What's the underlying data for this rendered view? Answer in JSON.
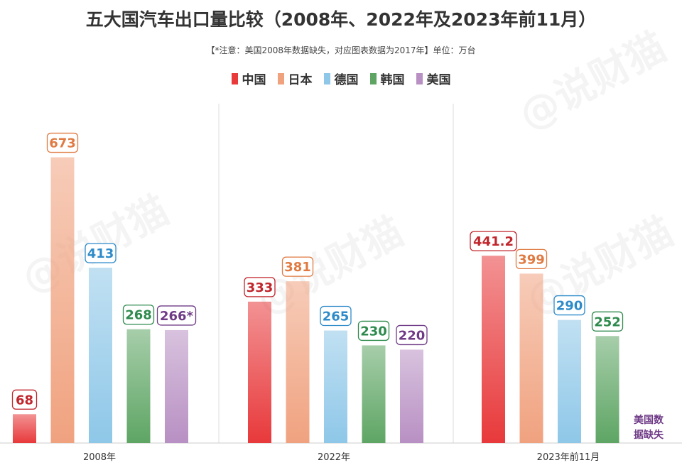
{
  "title": "五大国汽车出口量比较（2008年、2022年及2023年前11月）",
  "subtitle": "【*注意：美国2008年数据缺失，对应图表数据为2017年】单位：万台",
  "watermark": "@说财猫",
  "colors": {
    "中国": "#e8393b",
    "日本": "#f0a27f",
    "德国": "#8ec7e8",
    "韩国": "#5ea564",
    "美国": "#b890c3"
  },
  "label_colors": {
    "中国": "#c0262c",
    "日本": "#e07a42",
    "德国": "#2e8bc9",
    "韩国": "#2e8a4d",
    "美国": "#6f3a86"
  },
  "chart_data": {
    "type": "bar",
    "categories": [
      "2008年",
      "2022年",
      "2023年前11月"
    ],
    "series": [
      {
        "name": "中国",
        "values": [
          68,
          333,
          441.2
        ],
        "labels": [
          "68",
          "333",
          "441.2"
        ]
      },
      {
        "name": "日本",
        "values": [
          673,
          381,
          399
        ],
        "labels": [
          "673",
          "381",
          "399"
        ]
      },
      {
        "name": "德国",
        "values": [
          413,
          265,
          290
        ],
        "labels": [
          "413",
          "265",
          "290"
        ]
      },
      {
        "name": "韩国",
        "values": [
          268,
          230,
          252
        ],
        "labels": [
          "268",
          "230",
          "252"
        ]
      },
      {
        "name": "美国",
        "values": [
          266,
          220,
          null
        ],
        "labels": [
          "266*",
          "220",
          ""
        ]
      }
    ],
    "ylim": [
      0,
      700
    ],
    "grid": false,
    "legend_position": "top-center",
    "annotation": "美国数据缺失"
  }
}
